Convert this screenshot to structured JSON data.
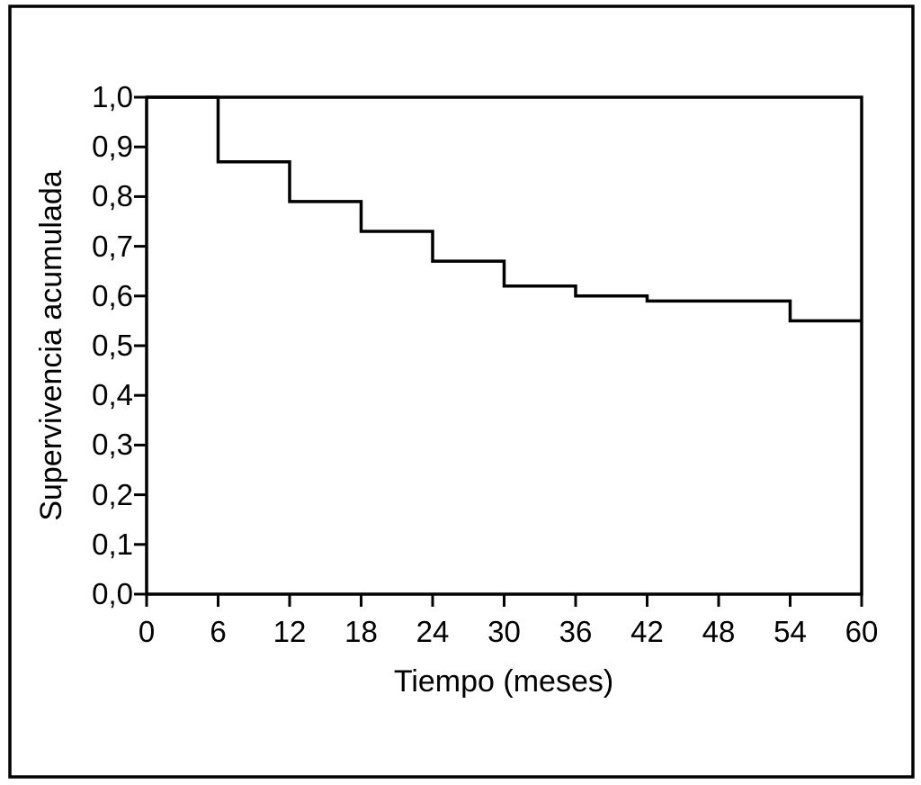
{
  "figure": {
    "background": "#ffffff",
    "border_color": "#000000"
  },
  "chart_data": {
    "type": "line",
    "subtype": "step-survival-curve (Kaplan-Meier)",
    "title": "",
    "xlabel": "Tiempo (meses)",
    "ylabel": "Supervivencia acumulada",
    "xlim": [
      0,
      60
    ],
    "ylim": [
      0.0,
      1.0
    ],
    "grid": false,
    "frame": "closed-box",
    "legend": "none",
    "line_color": "#000000",
    "x_tick_values": [
      0,
      6,
      12,
      18,
      24,
      30,
      36,
      42,
      48,
      54,
      60
    ],
    "x_tick_labels": [
      "0",
      "6",
      "12",
      "18",
      "24",
      "30",
      "36",
      "42",
      "48",
      "54",
      "60"
    ],
    "y_tick_values": [
      0.0,
      0.1,
      0.2,
      0.3,
      0.4,
      0.5,
      0.6,
      0.7,
      0.8,
      0.9,
      1.0
    ],
    "y_tick_labels": [
      "0,0",
      "0,1",
      "0,2",
      "0,3",
      "0,4",
      "0,5",
      "0,6",
      "0,7",
      "0,8",
      "0,9",
      "1,0"
    ],
    "series": [
      {
        "color": "#000000",
        "step_points": [
          [
            0,
            1.0
          ],
          [
            6,
            0.87
          ],
          [
            12,
            0.79
          ],
          [
            18,
            0.73
          ],
          [
            24,
            0.67
          ],
          [
            30,
            0.62
          ],
          [
            36,
            0.6
          ],
          [
            42,
            0.59
          ],
          [
            54,
            0.55
          ]
        ],
        "end_x": 60
      }
    ]
  }
}
